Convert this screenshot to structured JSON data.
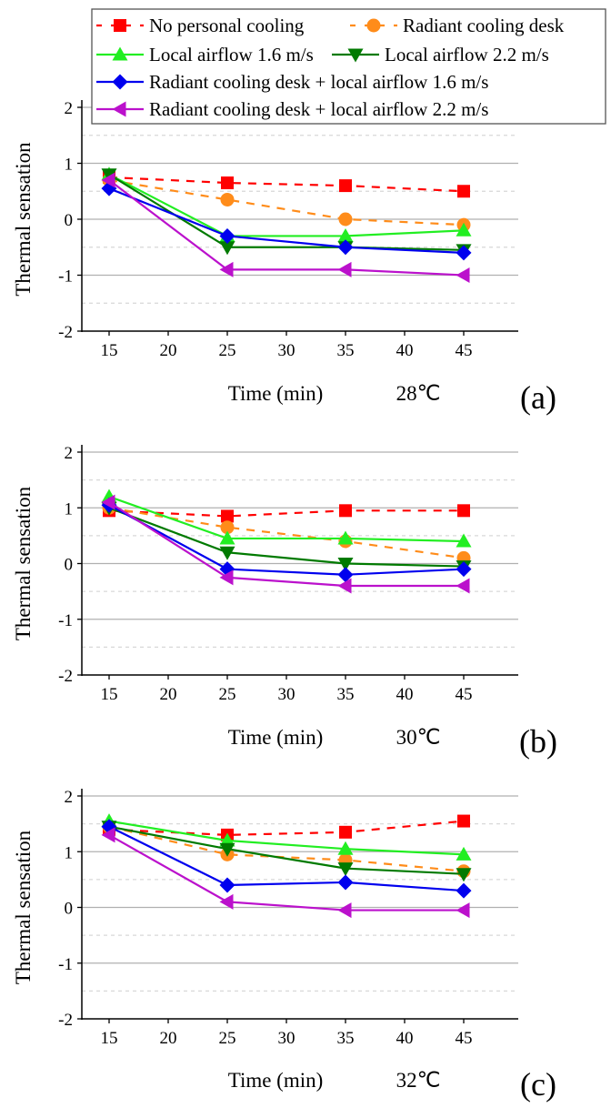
{
  "chart_data": {
    "type": "line",
    "legend": {
      "placement": "top",
      "entries": [
        "No personal cooling",
        "Radiant cooling desk",
        "Local airflow 1.6 m/s",
        "Local airflow 2.2 m/s",
        "Radiant cooling desk + local airflow 1.6 m/s",
        "Radiant cooling desk + local airflow 2.2 m/s"
      ]
    },
    "series_style": [
      {
        "color": "#ff0000",
        "dash": true,
        "marker": "square"
      },
      {
        "color": "#ff8c1a",
        "dash": true,
        "marker": "circle"
      },
      {
        "color": "#22ee22",
        "dash": false,
        "marker": "triangle-up"
      },
      {
        "color": "#007a00",
        "dash": false,
        "marker": "triangle-down"
      },
      {
        "color": "#0000ee",
        "dash": false,
        "marker": "diamond"
      },
      {
        "color": "#bb11cc",
        "dash": false,
        "marker": "triangle-left"
      }
    ],
    "x": [
      15,
      25,
      35,
      45
    ],
    "x_ticks": [
      "15",
      "20",
      "25",
      "30",
      "35",
      "40",
      "45"
    ],
    "y_ticks": [
      "2",
      "1",
      "0",
      "-1",
      "-2"
    ],
    "xlim": [
      12.5,
      49.5
    ],
    "ylim": [
      -2,
      2
    ],
    "grid": true,
    "xlabel": "Time (min)",
    "ylabel": "Thermal sensation",
    "panels": [
      {
        "id": "(a)",
        "temperature": "28℃",
        "series": [
          {
            "name": "No personal cooling",
            "values": [
              0.75,
              0.65,
              0.6,
              0.5
            ]
          },
          {
            "name": "Radiant cooling desk",
            "values": [
              0.7,
              0.35,
              0.0,
              -0.1
            ]
          },
          {
            "name": "Local airflow 1.6 m/s",
            "values": [
              0.8,
              -0.3,
              -0.3,
              -0.2
            ]
          },
          {
            "name": "Local airflow 2.2 m/s",
            "values": [
              0.8,
              -0.5,
              -0.5,
              -0.55
            ]
          },
          {
            "name": "Radiant cooling desk + local airflow 1.6 m/s",
            "values": [
              0.55,
              -0.3,
              -0.5,
              -0.6
            ]
          },
          {
            "name": "Radiant cooling desk + local airflow 2.2 m/s",
            "values": [
              0.7,
              -0.9,
              -0.9,
              -1.0
            ]
          }
        ]
      },
      {
        "id": "(b)",
        "temperature": "30℃",
        "series": [
          {
            "name": "No personal cooling",
            "values": [
              0.95,
              0.85,
              0.95,
              0.95
            ]
          },
          {
            "name": "Radiant cooling desk",
            "values": [
              1.0,
              0.65,
              0.4,
              0.1
            ]
          },
          {
            "name": "Local airflow 1.6 m/s",
            "values": [
              1.2,
              0.45,
              0.45,
              0.4
            ]
          },
          {
            "name": "Local airflow 2.2 m/s",
            "values": [
              1.0,
              0.2,
              0.0,
              -0.05
            ]
          },
          {
            "name": "Radiant cooling desk + local airflow 1.6 m/s",
            "values": [
              1.05,
              -0.1,
              -0.2,
              -0.1
            ]
          },
          {
            "name": "Radiant cooling desk + local airflow 2.2 m/s",
            "values": [
              1.1,
              -0.25,
              -0.4,
              -0.4
            ]
          }
        ]
      },
      {
        "id": "(c)",
        "temperature": "32℃",
        "series": [
          {
            "name": "No personal cooling",
            "values": [
              1.4,
              1.3,
              1.35,
              1.55
            ]
          },
          {
            "name": "Radiant cooling desk",
            "values": [
              1.45,
              0.95,
              0.85,
              0.65
            ]
          },
          {
            "name": "Local airflow 1.6 m/s",
            "values": [
              1.55,
              1.2,
              1.05,
              0.95
            ]
          },
          {
            "name": "Local airflow 2.2 m/s",
            "values": [
              1.45,
              1.05,
              0.7,
              0.6
            ]
          },
          {
            "name": "Radiant cooling desk + local airflow 1.6 m/s",
            "values": [
              1.45,
              0.4,
              0.45,
              0.3
            ]
          },
          {
            "name": "Radiant cooling desk + local airflow 2.2 m/s",
            "values": [
              1.3,
              0.1,
              -0.05,
              -0.05
            ]
          }
        ]
      }
    ]
  }
}
